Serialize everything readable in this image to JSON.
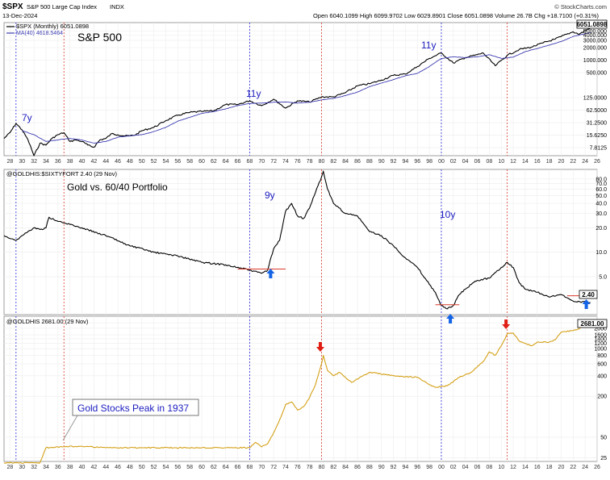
{
  "header": {
    "symbol": "$SPX",
    "name": "S&P 500 Large Cap Index",
    "exchange": "INDX",
    "date": "13-Dec-2024",
    "ohlc": "Open 6040.1099  High 6099.9702  Low 6029.8901  Close 6051.0898  Volume 26.7B  Chg +18.7100 (+0.31%)",
    "brand": "© StockCharts.com"
  },
  "x_axis": {
    "tick_labels": [
      "28",
      "30",
      "32",
      "34",
      "36",
      "38",
      "40",
      "42",
      "44",
      "46",
      "48",
      "50",
      "52",
      "54",
      "56",
      "58",
      "60",
      "62",
      "64",
      "66",
      "68",
      "70",
      "72",
      "74",
      "76",
      "78",
      "80",
      "82",
      "84",
      "86",
      "88",
      "90",
      "92",
      "94",
      "96",
      "98",
      "00",
      "02",
      "04",
      "06",
      "08",
      "10",
      "12",
      "14",
      "16",
      "18",
      "20",
      "22",
      "24",
      "26"
    ]
  },
  "vlines": {
    "blue_years": [
      1929,
      1968,
      2000
    ],
    "red_years": [
      1937,
      1980,
      2011
    ]
  },
  "panel1": {
    "legend1": "$SPX (Monthly) 6051.0898",
    "legend2": "MA(40) 4618.5464",
    "title": "S&P 500",
    "last_value": "6051.0898",
    "annotations": [
      {
        "text": "7y",
        "year": 1930,
        "value": 62
      },
      {
        "text": "11y",
        "year": 1970.5,
        "value": 150
      },
      {
        "text": "11y",
        "year": 2001,
        "value": 2300
      }
    ],
    "ticks": [
      "5000.000",
      "4000.000",
      "3000.000",
      "2000.000",
      "1000.000",
      "500.000",
      "125.0000",
      "62.5000",
      "31.2500",
      "15.6250",
      "7.8125"
    ],
    "tick_values": [
      5000,
      4000,
      3000,
      2000,
      1000,
      500,
      125,
      62.5,
      31.25,
      15.625,
      7.8125
    ]
  },
  "panel2": {
    "legend": "@GOLDHIS:$SIXTYFORT 2.40 (29 Nov)",
    "title": "Gold vs. 60/40 Portfolio",
    "last_value": "2.40",
    "annotations": [
      {
        "text": "9y",
        "year": 1974,
        "value": 60
      },
      {
        "text": "10y",
        "year": 2005,
        "value": 20
      }
    ],
    "ticks": [
      "80.0",
      "70.0",
      "60.0",
      "50.0",
      "40.0",
      "30.0",
      "20.0",
      "10.0",
      "5.0"
    ],
    "tick_values": [
      80,
      70,
      60,
      50,
      40,
      30,
      20,
      10,
      5
    ]
  },
  "panel3": {
    "legend": "@GOLDHIS 2681.00 (29 Nov)",
    "last_value": "2681.00",
    "callout": "Gold Stocks Peak in 1937",
    "ticks": [
      "2400",
      "2000",
      "1600",
      "1400",
      "1200",
      "1000",
      "800",
      "600",
      "400",
      "200",
      "50",
      "25"
    ],
    "tick_values": [
      2400,
      2000,
      1600,
      1400,
      1200,
      1000,
      800,
      600,
      400,
      200,
      50,
      25
    ]
  },
  "colors": {
    "price": "#000000",
    "ma": "#3b3bb0",
    "gold": "#d4a017",
    "blue_line": "#2b2bd9",
    "red_line": "#d93a2b",
    "annotation": "#1c1cbf",
    "arrow_blue": "#1464e6",
    "arrow_red": "#e01e14"
  },
  "chart_data": [
    {
      "type": "line",
      "title": "S&P 500",
      "y_scale": "log",
      "ylim": [
        5,
        8000
      ],
      "xlim": [
        1927,
        2026
      ],
      "series": [
        {
          "name": "$SPX (Monthly) 6051.0898",
          "x": [
            1927,
            1928,
            1929,
            1930,
            1931,
            1932,
            1933,
            1934,
            1935,
            1936,
            1937,
            1938,
            1939,
            1940,
            1941,
            1942,
            1943,
            1944,
            1945,
            1946,
            1947,
            1948,
            1949,
            1950,
            1952,
            1954,
            1956,
            1958,
            1960,
            1962,
            1964,
            1966,
            1968,
            1970,
            1972,
            1974,
            1976,
            1978,
            1980,
            1982,
            1984,
            1986,
            1988,
            1990,
            1992,
            1994,
            1996,
            1998,
            2000,
            2002,
            2004,
            2006,
            2007,
            2009,
            2011,
            2013,
            2015,
            2017,
            2019,
            2020,
            2022,
            2023,
            2024.9
          ],
          "y": [
            13,
            18,
            30,
            21,
            12,
            5,
            10,
            9,
            13,
            16,
            18,
            11,
            12,
            11,
            9,
            8,
            12,
            13,
            17,
            16,
            15,
            15,
            16,
            20,
            24,
            35,
            47,
            55,
            58,
            60,
            85,
            85,
            105,
            80,
            115,
            70,
            105,
            98,
            130,
            130,
            165,
            240,
            270,
            330,
            430,
            460,
            700,
            1100,
            1480,
            850,
            1150,
            1350,
            1480,
            730,
            1300,
            1800,
            2050,
            2600,
            3200,
            3700,
            4800,
            4200,
            6051
          ]
        },
        {
          "name": "MA(40)",
          "x": [
            1930,
            1932,
            1934,
            1936,
            1938,
            1940,
            1942,
            1944,
            1946,
            1948,
            1950,
            1952,
            1954,
            1956,
            1958,
            1960,
            1962,
            1964,
            1966,
            1968,
            1970,
            1972,
            1974,
            1976,
            1978,
            1980,
            1982,
            1984,
            1986,
            1988,
            1990,
            1992,
            1994,
            1996,
            1998,
            2000,
            2002,
            2004,
            2006,
            2008,
            2010,
            2012,
            2014,
            2016,
            2018,
            2020,
            2022,
            2024.9
          ],
          "y": [
            20,
            16,
            11,
            12,
            13,
            12,
            10,
            11,
            14,
            15,
            16,
            19,
            24,
            34,
            42,
            52,
            58,
            67,
            80,
            90,
            92,
            97,
            98,
            92,
            97,
            110,
            120,
            140,
            170,
            230,
            280,
            340,
            420,
            480,
            700,
            1100,
            1200,
            1150,
            1200,
            1350,
            1100,
            1180,
            1600,
            1900,
            2300,
            2800,
            3700,
            4618
          ]
        }
      ]
    },
    {
      "type": "line",
      "title": "Gold vs. 60/40 Portfolio",
      "y_scale": "log",
      "ylim": [
        1.7,
        105
      ],
      "xlim": [
        1927,
        2026
      ],
      "series": [
        {
          "name": "@GOLDHIS:$SIXTYFORT 2.40 (29 Nov)",
          "x": [
            1927,
            1929,
            1931,
            1932,
            1933,
            1934,
            1934.5,
            1936,
            1938,
            1940,
            1944,
            1948,
            1952,
            1956,
            1960,
            1964,
            1968,
            1970,
            1971,
            1972,
            1973,
            1974,
            1975,
            1976,
            1977,
            1978,
            1979,
            1980,
            1980.3,
            1981,
            1982,
            1984,
            1986,
            1988,
            1990,
            1992,
            1994,
            1996,
            1998,
            1999,
            2000,
            2001,
            2002,
            2003,
            2004,
            2005,
            2006,
            2008,
            2010,
            2011,
            2012,
            2013,
            2014,
            2016,
            2018,
            2020,
            2022,
            2024.9
          ],
          "y": [
            16,
            14,
            18,
            20,
            19,
            20,
            27,
            24,
            22,
            20,
            16,
            12,
            10,
            9,
            7.5,
            7,
            6,
            5.5,
            6,
            11,
            14,
            32,
            40,
            28,
            26,
            35,
            55,
            85,
            100,
            60,
            40,
            30,
            28,
            18,
            16,
            12,
            8.5,
            6.5,
            4,
            3.2,
            2.2,
            2.0,
            2.2,
            3.0,
            3.5,
            4,
            4.5,
            4.8,
            6.5,
            7.5,
            6.5,
            4.2,
            3.5,
            3.2,
            2.8,
            3.0,
            2.5,
            2.4
          ]
        }
      ]
    },
    {
      "type": "line",
      "title": "",
      "y_scale": "log",
      "ylim": [
        22,
        3000
      ],
      "xlim": [
        1927,
        2026
      ],
      "series": [
        {
          "name": "@GOLDHIS 2681.00 (29 Nov)",
          "x": [
            1927,
            1933,
            1934,
            1940,
            1944,
            1948,
            1960,
            1968,
            1969,
            1970,
            1971,
            1972,
            1973,
            1974,
            1975,
            1976,
            1977,
            1978,
            1979,
            1980,
            1980.3,
            1981,
            1982,
            1983,
            1985,
            1988,
            1993,
            1996,
            1998,
            1999,
            2001,
            2003,
            2005,
            2007,
            2008,
            2009,
            2010,
            2011,
            2012,
            2013,
            2014,
            2015,
            2016,
            2018,
            2019,
            2020,
            2022,
            2023,
            2024.9
          ],
          "y": [
            21,
            21,
            35,
            37,
            35,
            35,
            35,
            35,
            42,
            36,
            40,
            58,
            90,
            150,
            165,
            125,
            140,
            190,
            300,
            600,
            800,
            480,
            400,
            450,
            320,
            450,
            390,
            380,
            295,
            270,
            285,
            380,
            450,
            650,
            900,
            800,
            1100,
            1650,
            1700,
            1300,
            1200,
            1100,
            1250,
            1250,
            1350,
            1750,
            1850,
            1950,
            2681
          ]
        }
      ]
    }
  ]
}
